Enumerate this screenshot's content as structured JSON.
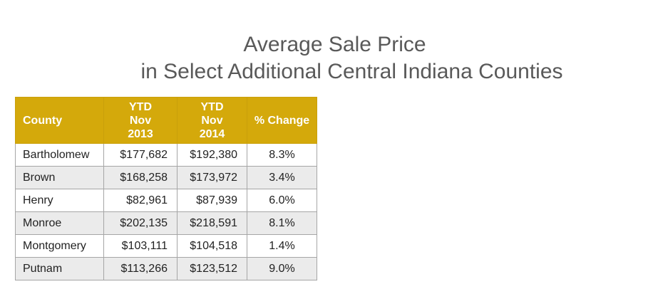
{
  "title_lines": [
    "Average Sale Price",
    "in Select Additional Central Indiana Counties"
  ],
  "chart_data": {
    "type": "table",
    "columns": [
      {
        "label_lines": [
          "County"
        ]
      },
      {
        "label_lines": [
          "YTD",
          "Nov",
          "2013"
        ]
      },
      {
        "label_lines": [
          "YTD",
          "Nov",
          "2014"
        ]
      },
      {
        "label_lines": [
          "% Change"
        ]
      }
    ],
    "rows": [
      [
        "Bartholomew",
        "$177,682",
        "$192,380",
        "8.3%"
      ],
      [
        "Brown",
        "$168,258",
        "$173,972",
        "3.4%"
      ],
      [
        "Henry",
        "$82,961",
        "$87,939",
        "6.0%"
      ],
      [
        "Monroe",
        "$202,135",
        "$218,591",
        "8.1%"
      ],
      [
        "Montgomery",
        "$103,111",
        "$104,518",
        "1.4%"
      ],
      [
        "Putnam",
        "$113,266",
        "$123,512",
        "9.0%"
      ]
    ]
  },
  "colors": {
    "header_bg": "#D4A90B",
    "header_text": "#FFFFFF",
    "stripe": "#EBEBEB",
    "title_text": "#595959"
  }
}
